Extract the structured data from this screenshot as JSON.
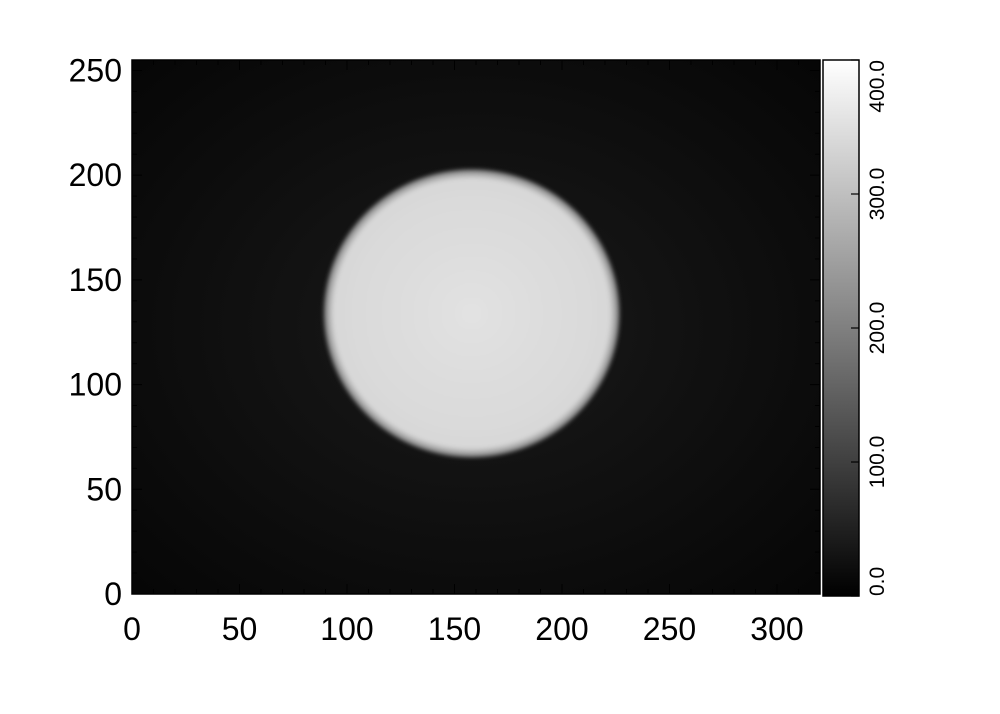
{
  "chart_data": {
    "type": "heatmap",
    "title": "",
    "xlabel": "",
    "ylabel": "",
    "xlim": [
      0,
      320
    ],
    "ylim": [
      0,
      255
    ],
    "x_ticks": [
      "0",
      "50",
      "100",
      "150",
      "200",
      "250",
      "300"
    ],
    "x_tick_values": [
      0,
      50,
      100,
      150,
      200,
      250,
      300
    ],
    "y_ticks": [
      "0",
      "50",
      "100",
      "150",
      "200",
      "250"
    ],
    "y_tick_values": [
      0,
      50,
      100,
      150,
      200,
      250
    ],
    "colormap": "grayscale",
    "colorbar": {
      "range": [
        0,
        400
      ],
      "ticks": [
        "0.0",
        "100.0",
        "200.0",
        "300.0",
        "400.0"
      ],
      "tick_values": [
        0,
        100,
        200,
        300,
        400
      ]
    },
    "features": [
      {
        "shape": "disk",
        "center_x": 158,
        "center_y": 134,
        "radius_x": 69,
        "radius_y": 69,
        "intensity": 350
      }
    ],
    "background_intensity": 15,
    "colors": {
      "low": "#000000",
      "high": "#ffffff",
      "disk": "#dcdcdc",
      "background": "#0c0c0c"
    }
  }
}
